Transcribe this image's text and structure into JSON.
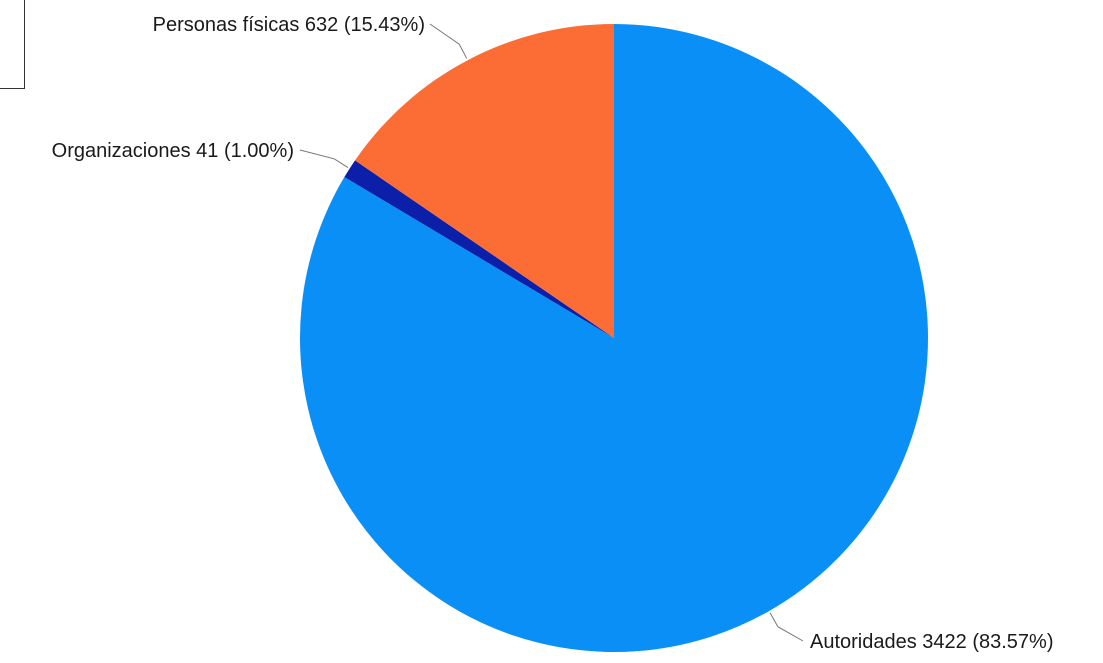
{
  "chart_data": {
    "type": "pie",
    "start_angle_deg": 0,
    "direction": "clockwise",
    "slices": [
      {
        "label": "Autoridades 3422 (83.57%)",
        "name": "Autoridades",
        "value": 3422,
        "percent": 83.57,
        "color": "#0a8ff7"
      },
      {
        "label": "Organizaciones 41 (1.00%)",
        "name": "Organizaciones",
        "value": 41,
        "percent": 1.0,
        "color": "#0c1fa8"
      },
      {
        "label": "Personas físicas 632 (15.43%)",
        "name": "Personas físicas",
        "value": 632,
        "percent": 15.43,
        "color": "#fc6c35"
      }
    ]
  }
}
